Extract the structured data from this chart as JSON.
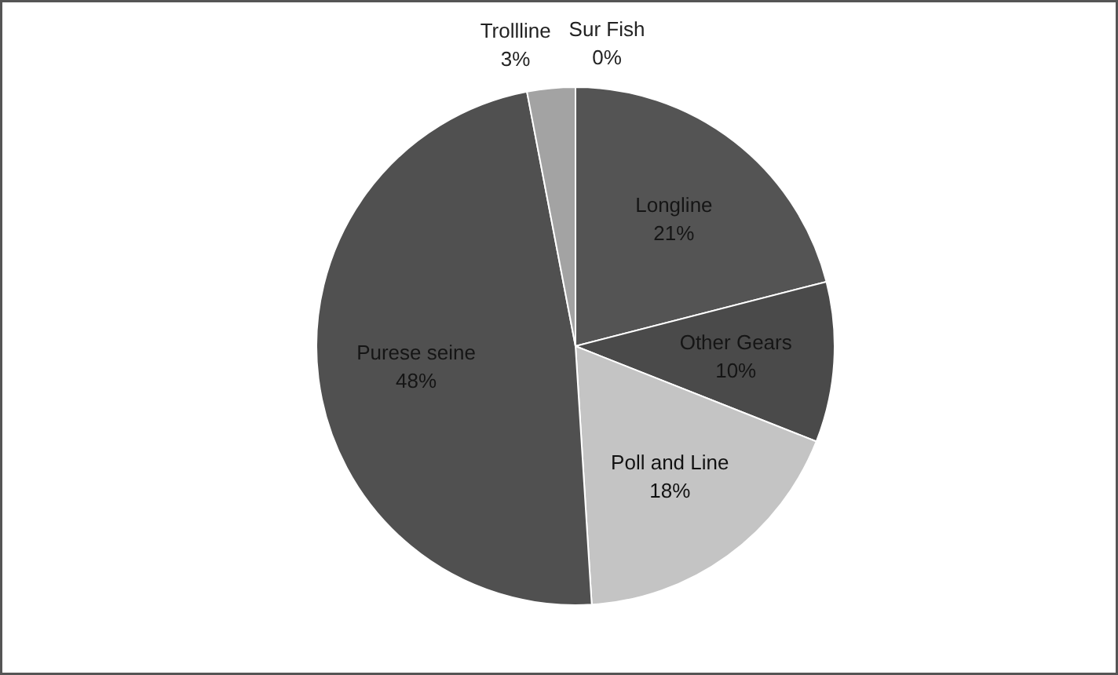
{
  "chart_data": {
    "type": "pie",
    "categories": [
      "Sur Fish",
      "Longline",
      "Other Gears",
      "Poll and Line",
      "Purese seine",
      "Trollline"
    ],
    "values": [
      0,
      21,
      10,
      18,
      48,
      3
    ],
    "value_labels": [
      "0%",
      "21%",
      "10%",
      "18%",
      "48%",
      "3%"
    ],
    "colors": [
      "#8a8a8a",
      "#545454",
      "#4a4a4a",
      "#c4c4c4",
      "#505050",
      "#a3a3a3"
    ]
  }
}
